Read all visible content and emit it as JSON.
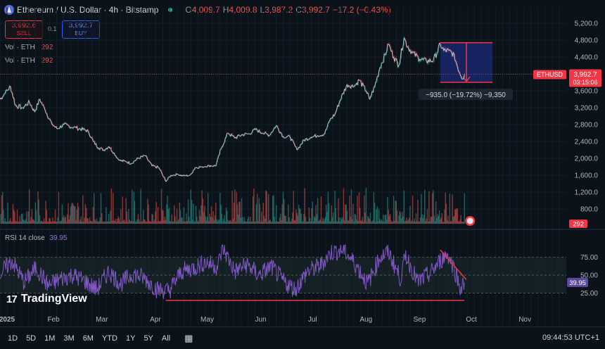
{
  "header": {
    "title": "Ethereum / U.S. Dollar · 4h · Bitstamp",
    "ohlc": [
      {
        "label": "O",
        "value": "4,009.7"
      },
      {
        "label": "H",
        "value": "4,009.8"
      },
      {
        "label": "L",
        "value": "3,987.2"
      },
      {
        "label": "C",
        "value": "3,992.7"
      }
    ],
    "change": "−17.2 (−0.43%)"
  },
  "trade": {
    "sell_price": "3,992.6",
    "sell_label": "SELL",
    "buy_price": "3,992.7",
    "buy_label": "BUY",
    "spread": "0.1"
  },
  "volume_legend": {
    "label": "Vol · ETH",
    "value": "292"
  },
  "rsi_legend": {
    "label": "RSI 14 close",
    "value": "39.95"
  },
  "branding": {
    "logo": "TradingView",
    "logo_mark": "17"
  },
  "bottom_bar": {
    "ranges": [
      "1D",
      "5D",
      "1M",
      "3M",
      "6M",
      "YTD",
      "1Y",
      "5Y",
      "All"
    ],
    "clock": "09:44:53 UTC+1"
  },
  "colors": {
    "up": "#26a69a",
    "down": "#ef5350",
    "rsi": "#7e57c2",
    "marker": "#f23645",
    "measure_fill": "#1c2a78"
  },
  "chart_data": [
    {
      "type": "line",
      "title": "Ethereum / U.S. Dollar · 4h · Bitstamp",
      "series": [
        {
          "name": "ETHUSD",
          "points": [
            [
              "2025-01-01",
              3400
            ],
            [
              "2025-01-04",
              3550
            ],
            [
              "2025-01-07",
              3700
            ],
            [
              "2025-01-10",
              3250
            ],
            [
              "2025-01-14",
              3200
            ],
            [
              "2025-01-18",
              3330
            ],
            [
              "2025-01-21",
              3100
            ],
            [
              "2025-01-24",
              3400
            ],
            [
              "2025-01-27",
              3150
            ],
            [
              "2025-01-31",
              2820
            ],
            [
              "2025-02-03",
              2700
            ],
            [
              "2025-02-07",
              2800
            ],
            [
              "2025-02-10",
              2760
            ],
            [
              "2025-02-14",
              2720
            ],
            [
              "2025-02-18",
              2680
            ],
            [
              "2025-02-21",
              2650
            ],
            [
              "2025-02-24",
              2400
            ],
            [
              "2025-02-27",
              2250
            ],
            [
              "2025-03-02",
              2200
            ],
            [
              "2025-03-05",
              2280
            ],
            [
              "2025-03-08",
              2130
            ],
            [
              "2025-03-11",
              1950
            ],
            [
              "2025-03-15",
              1920
            ],
            [
              "2025-03-18",
              1880
            ],
            [
              "2025-03-22",
              2000
            ],
            [
              "2025-03-26",
              2060
            ],
            [
              "2025-03-30",
              1820
            ],
            [
              "2025-04-03",
              1780
            ],
            [
              "2025-04-07",
              1450
            ],
            [
              "2025-04-10",
              1600
            ],
            [
              "2025-04-14",
              1620
            ],
            [
              "2025-04-17",
              1580
            ],
            [
              "2025-04-21",
              1600
            ],
            [
              "2025-04-24",
              1780
            ],
            [
              "2025-04-28",
              1800
            ],
            [
              "2025-05-02",
              1830
            ],
            [
              "2025-05-06",
              1820
            ],
            [
              "2025-05-09",
              2230
            ],
            [
              "2025-05-13",
              2600
            ],
            [
              "2025-05-17",
              2480
            ],
            [
              "2025-05-21",
              2560
            ],
            [
              "2025-05-25",
              2580
            ],
            [
              "2025-05-29",
              2680
            ],
            [
              "2025-06-02",
              2600
            ],
            [
              "2025-06-06",
              2550
            ],
            [
              "2025-06-10",
              2780
            ],
            [
              "2025-06-14",
              2520
            ],
            [
              "2025-06-18",
              2500
            ],
            [
              "2025-06-22",
              2200
            ],
            [
              "2025-06-26",
              2430
            ],
            [
              "2025-06-30",
              2500
            ],
            [
              "2025-07-04",
              2540
            ],
            [
              "2025-07-08",
              2580
            ],
            [
              "2025-07-11",
              2900
            ],
            [
              "2025-07-14",
              3050
            ],
            [
              "2025-07-17",
              3380
            ],
            [
              "2025-07-21",
              3750
            ],
            [
              "2025-07-25",
              3700
            ],
            [
              "2025-07-28",
              3850
            ],
            [
              "2025-08-01",
              3600
            ],
            [
              "2025-08-03",
              3400
            ],
            [
              "2025-08-06",
              3700
            ],
            [
              "2025-08-09",
              4150
            ],
            [
              "2025-08-12",
              4450
            ],
            [
              "2025-08-14",
              4700
            ],
            [
              "2025-08-17",
              4400
            ],
            [
              "2025-08-20",
              4200
            ],
            [
              "2025-08-23",
              4850
            ],
            [
              "2025-08-25",
              4650
            ],
            [
              "2025-08-28",
              4500
            ],
            [
              "2025-09-01",
              4350
            ],
            [
              "2025-09-05",
              4300
            ],
            [
              "2025-09-09",
              4320
            ],
            [
              "2025-09-13",
              4700
            ],
            [
              "2025-09-15",
              4550
            ],
            [
              "2025-09-18",
              4550
            ],
            [
              "2025-09-21",
              4450
            ],
            [
              "2025-09-23",
              4150
            ],
            [
              "2025-09-26",
              3880
            ],
            [
              "2025-09-27",
              3992.7
            ]
          ]
        },
        {
          "name": "RSI 14 close",
          "points": [
            [
              "2025-01-01",
              52
            ],
            [
              "2025-01-08",
              70
            ],
            [
              "2025-01-15",
              40
            ],
            [
              "2025-01-22",
              60
            ],
            [
              "2025-01-29",
              35
            ],
            [
              "2025-02-05",
              45
            ],
            [
              "2025-02-12",
              50
            ],
            [
              "2025-02-19",
              42
            ],
            [
              "2025-02-26",
              30
            ],
            [
              "2025-03-05",
              55
            ],
            [
              "2025-03-12",
              38
            ],
            [
              "2025-03-19",
              52
            ],
            [
              "2025-03-26",
              45
            ],
            [
              "2025-04-02",
              30
            ],
            [
              "2025-04-09",
              28
            ],
            [
              "2025-04-16",
              55
            ],
            [
              "2025-04-23",
              60
            ],
            [
              "2025-04-30",
              68
            ],
            [
              "2025-05-07",
              62
            ],
            [
              "2025-05-10",
              88
            ],
            [
              "2025-05-17",
              55
            ],
            [
              "2025-05-24",
              65
            ],
            [
              "2025-05-31",
              50
            ],
            [
              "2025-06-07",
              62
            ],
            [
              "2025-06-14",
              42
            ],
            [
              "2025-06-21",
              30
            ],
            [
              "2025-06-28",
              55
            ],
            [
              "2025-07-05",
              62
            ],
            [
              "2025-07-12",
              82
            ],
            [
              "2025-07-19",
              85
            ],
            [
              "2025-07-26",
              65
            ],
            [
              "2025-08-02",
              38
            ],
            [
              "2025-08-09",
              75
            ],
            [
              "2025-08-14",
              82
            ],
            [
              "2025-08-21",
              45
            ],
            [
              "2025-08-24",
              78
            ],
            [
              "2025-08-31",
              40
            ],
            [
              "2025-09-07",
              52
            ],
            [
              "2025-09-13",
              70
            ],
            [
              "2025-09-17",
              80
            ],
            [
              "2025-09-21",
              60
            ],
            [
              "2025-09-25",
              30
            ],
            [
              "2025-09-27",
              39.95
            ]
          ]
        }
      ],
      "x_ticks": [
        "2025",
        "Feb",
        "Mar",
        "Apr",
        "May",
        "Jun",
        "Jul",
        "Aug",
        "Sep",
        "Oct",
        "Nov"
      ],
      "xlim": [
        "2025-01-01",
        "2025-11-25"
      ],
      "y_ticks": [
        5200,
        4800,
        4400,
        4000,
        3600,
        3200,
        2800,
        2400,
        2000,
        1600,
        1200,
        800
      ],
      "ylim": [
        450,
        5450
      ],
      "rsi_ticks": [
        75.0,
        50.0,
        25.0
      ],
      "rsi_lim": [
        10,
        95
      ],
      "grid": true,
      "last_price": {
        "symbol": "ETHUSD",
        "price": "3,992.7",
        "countdown": "03:15:06"
      },
      "volume_last": "292",
      "rsi_last": "39.95",
      "measure": {
        "label": "−935.0 (−19.72%) −9,350",
        "from": "2025-09-13",
        "to": "2025-09-27",
        "high": 4740,
        "low": 3800
      },
      "annotations": [
        {
          "type": "rsi_support_line",
          "from": [
            "2025-04-07",
            15
          ],
          "to": [
            "2025-09-27",
            15
          ]
        },
        {
          "type": "rsi_trend_line",
          "from": [
            "2025-09-13",
            85
          ],
          "to": [
            "2025-09-28",
            44
          ]
        }
      ]
    }
  ]
}
